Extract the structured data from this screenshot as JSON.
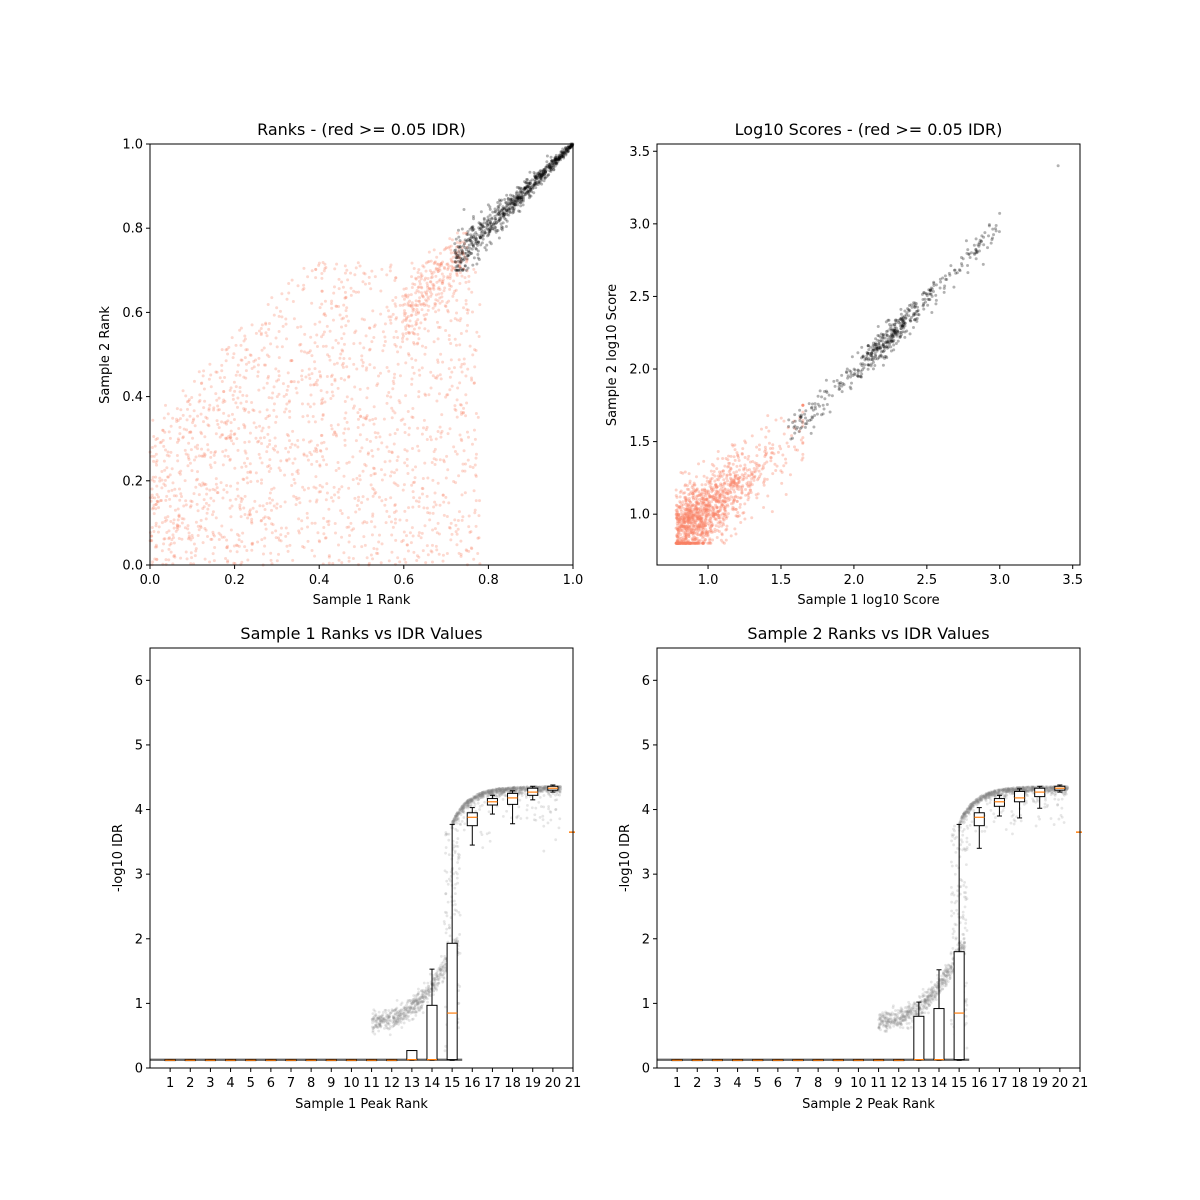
{
  "colors": {
    "pass": "#000000",
    "fail": "#fa8264",
    "median": "#ff7f0e",
    "box": "#000000",
    "idr_points": "#808080"
  },
  "chart_data": [
    {
      "type": "scatter",
      "title": "Ranks - (red >= 0.05 IDR)",
      "xlabel": "Sample 1 Rank",
      "ylabel": "Sample 2 Rank",
      "xlim": [
        0,
        1
      ],
      "ylim": [
        0,
        1
      ],
      "xticks": [
        "0.0",
        "0.2",
        "0.4",
        "0.6",
        "0.8",
        "1.0"
      ],
      "yticks": [
        "0.0",
        "0.2",
        "0.4",
        "0.6",
        "0.8",
        "1.0"
      ],
      "grid": false,
      "series": [
        {
          "color": "fail",
          "description_points": [
            [
              0.05,
              0.1
            ],
            [
              0.2,
              0.55
            ],
            [
              0.4,
              0.3
            ],
            [
              0.6,
              0.65
            ],
            [
              0.7,
              0.72
            ]
          ]
        },
        {
          "color": "pass",
          "description_points": [
            [
              0.72,
              0.72
            ],
            [
              0.8,
              0.79
            ],
            [
              0.9,
              0.9
            ],
            [
              1.0,
              1.0
            ]
          ]
        }
      ]
    },
    {
      "type": "scatter",
      "title": "Log10 Scores - (red >= 0.05 IDR)",
      "xlabel": "Sample 1 log10 Score",
      "ylabel": "Sample 2 log10 Score",
      "xlim": [
        0.65,
        3.55
      ],
      "ylim": [
        0.65,
        3.55
      ],
      "xticks": [
        "1.0",
        "1.5",
        "2.0",
        "2.5",
        "3.0",
        "3.5"
      ],
      "yticks": [
        "1.0",
        "1.5",
        "2.0",
        "2.5",
        "3.0",
        "3.5"
      ],
      "grid": false,
      "series": [
        {
          "color": "fail",
          "description_points": [
            [
              0.8,
              0.85
            ],
            [
              1.0,
              1.0
            ],
            [
              1.3,
              1.2
            ],
            [
              1.6,
              1.55
            ]
          ]
        },
        {
          "color": "pass",
          "description_points": [
            [
              1.55,
              1.5
            ],
            [
              2.0,
              2.0
            ],
            [
              2.3,
              2.25
            ],
            [
              2.95,
              2.95
            ],
            [
              3.4,
              3.4
            ]
          ]
        }
      ]
    },
    {
      "type": "box",
      "title": "Sample 1 Ranks vs IDR Values",
      "xlabel": "Sample 1 Peak Rank",
      "ylabel": "-log10 IDR",
      "ylim": [
        0,
        6.5
      ],
      "yticks": [
        "0",
        "1",
        "2",
        "3",
        "4",
        "5",
        "6"
      ],
      "xticks": [
        "1",
        "2",
        "3",
        "4",
        "5",
        "6",
        "7",
        "8",
        "9",
        "10",
        "11",
        "12",
        "13",
        "14",
        "15",
        "16",
        "17",
        "18",
        "19",
        "20",
        "21"
      ],
      "grid": false,
      "boxes": [
        {
          "pos": 1,
          "q1": 0.12,
          "med": 0.12,
          "q3": 0.13,
          "wlo": 0.12,
          "whi": 0.13
        },
        {
          "pos": 2,
          "q1": 0.12,
          "med": 0.12,
          "q3": 0.13,
          "wlo": 0.12,
          "whi": 0.13
        },
        {
          "pos": 3,
          "q1": 0.12,
          "med": 0.12,
          "q3": 0.13,
          "wlo": 0.12,
          "whi": 0.13
        },
        {
          "pos": 4,
          "q1": 0.12,
          "med": 0.12,
          "q3": 0.13,
          "wlo": 0.12,
          "whi": 0.13
        },
        {
          "pos": 5,
          "q1": 0.12,
          "med": 0.12,
          "q3": 0.13,
          "wlo": 0.12,
          "whi": 0.13
        },
        {
          "pos": 6,
          "q1": 0.12,
          "med": 0.12,
          "q3": 0.13,
          "wlo": 0.12,
          "whi": 0.13
        },
        {
          "pos": 7,
          "q1": 0.12,
          "med": 0.12,
          "q3": 0.13,
          "wlo": 0.12,
          "whi": 0.13
        },
        {
          "pos": 8,
          "q1": 0.12,
          "med": 0.12,
          "q3": 0.13,
          "wlo": 0.12,
          "whi": 0.13
        },
        {
          "pos": 9,
          "q1": 0.12,
          "med": 0.12,
          "q3": 0.13,
          "wlo": 0.12,
          "whi": 0.13
        },
        {
          "pos": 10,
          "q1": 0.12,
          "med": 0.12,
          "q3": 0.13,
          "wlo": 0.12,
          "whi": 0.13
        },
        {
          "pos": 11,
          "q1": 0.12,
          "med": 0.12,
          "q3": 0.13,
          "wlo": 0.12,
          "whi": 0.13
        },
        {
          "pos": 12,
          "q1": 0.12,
          "med": 0.12,
          "q3": 0.13,
          "wlo": 0.12,
          "whi": 0.13
        },
        {
          "pos": 13,
          "q1": 0.13,
          "med": 0.13,
          "q3": 0.27,
          "wlo": 0.12,
          "whi": 0.27
        },
        {
          "pos": 14,
          "q1": 0.13,
          "med": 0.13,
          "q3": 0.97,
          "wlo": 0.12,
          "whi": 1.53
        },
        {
          "pos": 15,
          "q1": 0.13,
          "med": 0.85,
          "q3": 1.93,
          "wlo": 0.12,
          "whi": 3.77
        },
        {
          "pos": 16,
          "q1": 3.75,
          "med": 3.88,
          "q3": 3.95,
          "wlo": 3.45,
          "whi": 4.03
        },
        {
          "pos": 17,
          "q1": 4.07,
          "med": 4.12,
          "q3": 4.17,
          "wlo": 3.93,
          "whi": 4.22
        },
        {
          "pos": 18,
          "q1": 4.08,
          "med": 4.18,
          "q3": 4.25,
          "wlo": 3.78,
          "whi": 4.29
        },
        {
          "pos": 19,
          "q1": 4.22,
          "med": 4.27,
          "q3": 4.33,
          "wlo": 4.15,
          "whi": 4.36
        },
        {
          "pos": 20,
          "q1": 4.3,
          "med": 4.33,
          "q3": 4.36,
          "wlo": 4.27,
          "whi": 4.38
        }
      ],
      "edge_median": 3.65
    },
    {
      "type": "box",
      "title": "Sample 2 Ranks vs IDR Values",
      "xlabel": "Sample 2 Peak Rank",
      "ylabel": "-log10 IDR",
      "ylim": [
        0,
        6.5
      ],
      "yticks": [
        "0",
        "1",
        "2",
        "3",
        "4",
        "5",
        "6"
      ],
      "xticks": [
        "1",
        "2",
        "3",
        "4",
        "5",
        "6",
        "7",
        "8",
        "9",
        "10",
        "11",
        "12",
        "13",
        "14",
        "15",
        "16",
        "17",
        "18",
        "19",
        "20",
        "21"
      ],
      "grid": false,
      "boxes": [
        {
          "pos": 1,
          "q1": 0.12,
          "med": 0.12,
          "q3": 0.13,
          "wlo": 0.12,
          "whi": 0.13
        },
        {
          "pos": 2,
          "q1": 0.12,
          "med": 0.12,
          "q3": 0.13,
          "wlo": 0.12,
          "whi": 0.13
        },
        {
          "pos": 3,
          "q1": 0.12,
          "med": 0.12,
          "q3": 0.13,
          "wlo": 0.12,
          "whi": 0.13
        },
        {
          "pos": 4,
          "q1": 0.12,
          "med": 0.12,
          "q3": 0.13,
          "wlo": 0.12,
          "whi": 0.13
        },
        {
          "pos": 5,
          "q1": 0.12,
          "med": 0.12,
          "q3": 0.13,
          "wlo": 0.12,
          "whi": 0.13
        },
        {
          "pos": 6,
          "q1": 0.12,
          "med": 0.12,
          "q3": 0.13,
          "wlo": 0.12,
          "whi": 0.13
        },
        {
          "pos": 7,
          "q1": 0.12,
          "med": 0.12,
          "q3": 0.13,
          "wlo": 0.12,
          "whi": 0.13
        },
        {
          "pos": 8,
          "q1": 0.12,
          "med": 0.12,
          "q3": 0.13,
          "wlo": 0.12,
          "whi": 0.13
        },
        {
          "pos": 9,
          "q1": 0.12,
          "med": 0.12,
          "q3": 0.13,
          "wlo": 0.12,
          "whi": 0.13
        },
        {
          "pos": 10,
          "q1": 0.12,
          "med": 0.12,
          "q3": 0.13,
          "wlo": 0.12,
          "whi": 0.13
        },
        {
          "pos": 11,
          "q1": 0.12,
          "med": 0.12,
          "q3": 0.13,
          "wlo": 0.12,
          "whi": 0.13
        },
        {
          "pos": 12,
          "q1": 0.12,
          "med": 0.12,
          "q3": 0.13,
          "wlo": 0.12,
          "whi": 0.13
        },
        {
          "pos": 13,
          "q1": 0.13,
          "med": 0.13,
          "q3": 0.8,
          "wlo": 0.12,
          "whi": 1.02
        },
        {
          "pos": 14,
          "q1": 0.13,
          "med": 0.13,
          "q3": 0.92,
          "wlo": 0.12,
          "whi": 1.52
        },
        {
          "pos": 15,
          "q1": 0.13,
          "med": 0.85,
          "q3": 1.8,
          "wlo": 0.12,
          "whi": 3.77
        },
        {
          "pos": 16,
          "q1": 3.75,
          "med": 3.88,
          "q3": 3.95,
          "wlo": 3.4,
          "whi": 4.03
        },
        {
          "pos": 17,
          "q1": 4.05,
          "med": 4.12,
          "q3": 4.17,
          "wlo": 3.9,
          "whi": 4.22
        },
        {
          "pos": 18,
          "q1": 4.12,
          "med": 4.18,
          "q3": 4.28,
          "wlo": 3.87,
          "whi": 4.32
        },
        {
          "pos": 19,
          "q1": 4.2,
          "med": 4.27,
          "q3": 4.33,
          "wlo": 4.02,
          "whi": 4.36
        },
        {
          "pos": 20,
          "q1": 4.3,
          "med": 4.33,
          "q3": 4.36,
          "wlo": 4.27,
          "whi": 4.38
        }
      ],
      "edge_median": 3.65
    }
  ]
}
